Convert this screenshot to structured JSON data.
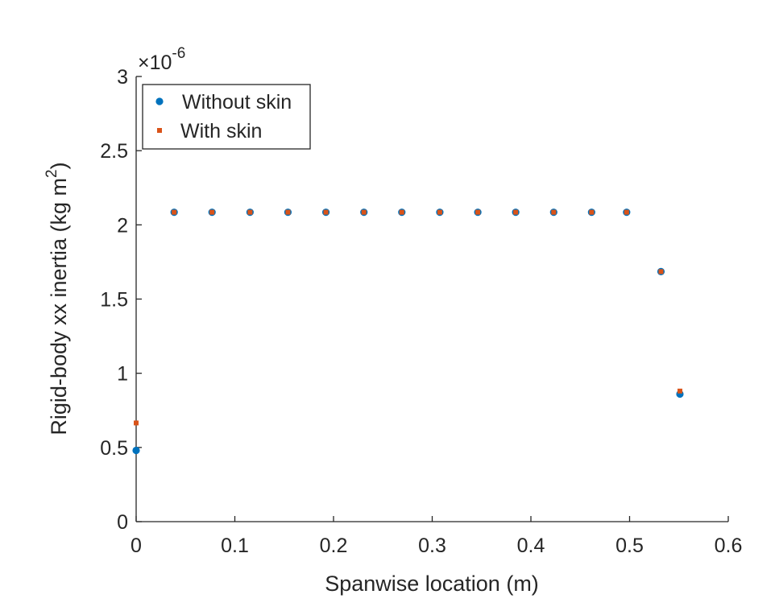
{
  "chart_data": {
    "type": "scatter",
    "xlabel": "Spanwise location (m)",
    "ylabel": {
      "main": "Rigid-body xx inertia (kg m",
      "sup": "2",
      "close": ")"
    },
    "xlim": [
      0,
      0.6
    ],
    "ylim": [
      0,
      3
    ],
    "x_ticks": [
      "0",
      "0.1",
      "0.2",
      "0.3",
      "0.4",
      "0.5",
      "0.6"
    ],
    "y_ticks": [
      "0",
      "0.5",
      "1",
      "1.5",
      "2",
      "2.5",
      "3"
    ],
    "y_multiplier": {
      "prefix": "×10",
      "exponent": "-6"
    },
    "grid": false,
    "legend_position": "top-left",
    "series": [
      {
        "name": "Without skin",
        "marker": "circle",
        "color": "#0072BD",
        "points": [
          [
            0.0,
            0.48
          ],
          [
            0.0385,
            2.085
          ],
          [
            0.0769,
            2.085
          ],
          [
            0.1154,
            2.085
          ],
          [
            0.1538,
            2.085
          ],
          [
            0.1923,
            2.085
          ],
          [
            0.2308,
            2.085
          ],
          [
            0.2692,
            2.085
          ],
          [
            0.3077,
            2.085
          ],
          [
            0.3462,
            2.085
          ],
          [
            0.3846,
            2.085
          ],
          [
            0.4231,
            2.085
          ],
          [
            0.4615,
            2.085
          ],
          [
            0.497,
            2.085
          ],
          [
            0.5318,
            1.685
          ],
          [
            0.551,
            0.86
          ]
        ]
      },
      {
        "name": "With skin",
        "marker": "square",
        "color": "#D95319",
        "points": [
          [
            0.0,
            0.665
          ],
          [
            0.0385,
            2.085
          ],
          [
            0.0769,
            2.085
          ],
          [
            0.1154,
            2.085
          ],
          [
            0.1538,
            2.085
          ],
          [
            0.1923,
            2.085
          ],
          [
            0.2308,
            2.085
          ],
          [
            0.2692,
            2.085
          ],
          [
            0.3077,
            2.085
          ],
          [
            0.3462,
            2.085
          ],
          [
            0.3846,
            2.085
          ],
          [
            0.4231,
            2.085
          ],
          [
            0.4615,
            2.085
          ],
          [
            0.497,
            2.085
          ],
          [
            0.5318,
            1.685
          ],
          [
            0.551,
            0.88
          ]
        ]
      }
    ]
  }
}
